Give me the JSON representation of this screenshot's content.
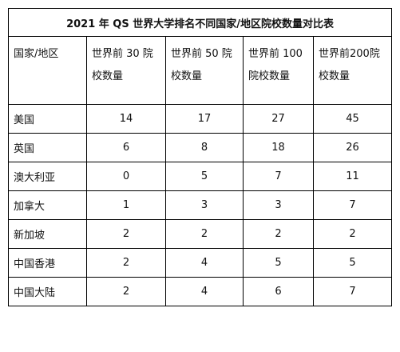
{
  "table": {
    "title": "2021 年 QS 世界大学排名不同国家/地区院校数量对比表",
    "headers": [
      "国家/地区",
      "世界前 30 院校数量",
      "世界前 50 院校数量",
      "世界前 100 院校数量",
      "世界前200院校数量"
    ],
    "rows": [
      [
        "美国",
        "14",
        "17",
        "27",
        "45"
      ],
      [
        "英国",
        "6",
        "8",
        "18",
        "26"
      ],
      [
        "澳大利亚",
        "0",
        "5",
        "7",
        "11"
      ],
      [
        "加拿大",
        "1",
        "3",
        "3",
        "7"
      ],
      [
        "新加坡",
        "2",
        "2",
        "2",
        "2"
      ],
      [
        "中国香港",
        "2",
        "4",
        "5",
        "5"
      ],
      [
        "中国大陆",
        "2",
        "4",
        "6",
        "7"
      ]
    ]
  }
}
